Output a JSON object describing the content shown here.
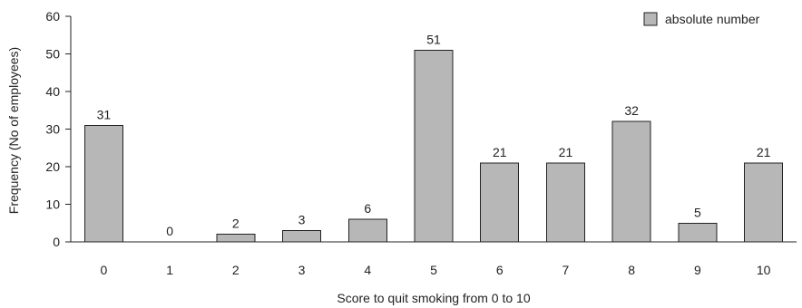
{
  "chart_data": {
    "type": "bar",
    "categories": [
      "0",
      "1",
      "2",
      "3",
      "4",
      "5",
      "6",
      "7",
      "8",
      "9",
      "10"
    ],
    "series": [
      {
        "name": "absolute number",
        "values": [
          31,
          0,
          2,
          3,
          6,
          51,
          21,
          21,
          32,
          5,
          21
        ],
        "color": "#b7b7b7"
      }
    ],
    "data_labels": [
      "31",
      "0",
      "2",
      "3",
      "6",
      "51",
      "21",
      "21",
      "32",
      "5",
      "21"
    ],
    "title": "",
    "xlabel": "Score to quit smoking from 0 to 10",
    "ylabel": "Frequency (No of employees)",
    "ylim": [
      0,
      60
    ],
    "yticks": [
      0,
      10,
      20,
      30,
      40,
      50,
      60
    ],
    "ytick_labels": [
      "0",
      "10",
      "20",
      "30",
      "40",
      "50",
      "60"
    ],
    "grid": false,
    "legend": {
      "placement": "top-right",
      "items": [
        "absolute number"
      ]
    },
    "axis_color": "#222222",
    "text_color": "#222222"
  }
}
